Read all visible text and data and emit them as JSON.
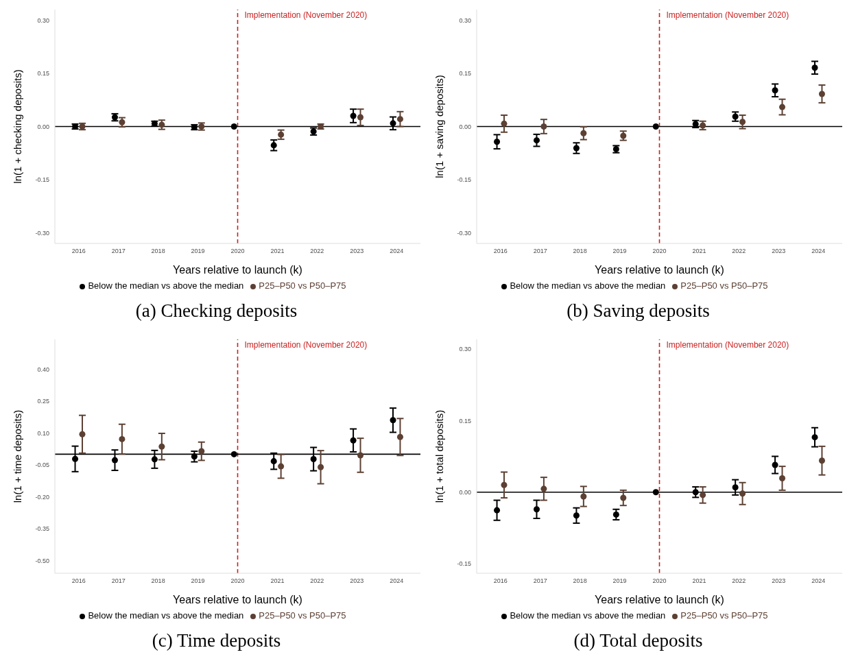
{
  "chart_data": [
    {
      "type": "scatter",
      "title": "(a) Checking deposits",
      "xlabel": "Years relative to launch (k)",
      "ylabel": "ln(1 + checking deposits)",
      "categories": [
        "2016",
        "2017",
        "2018",
        "2019",
        "2020",
        "2021",
        "2022",
        "2023",
        "2024"
      ],
      "series": [
        {
          "name": "Below the median vs above the median",
          "color": "#000000",
          "values": [
            0.0,
            0.026,
            0.008,
            -0.002,
            0.0,
            -0.053,
            -0.014,
            0.03,
            0.009
          ],
          "errors": [
            0.007,
            0.01,
            0.007,
            0.007,
            null,
            0.015,
            0.01,
            0.019,
            0.018
          ]
        },
        {
          "name": "P25–P50 vs P50–P75",
          "color": "#5c4033",
          "values": [
            0.0,
            0.012,
            0.005,
            0.0,
            null,
            -0.023,
            0.0,
            0.026,
            0.021
          ],
          "errors": [
            0.009,
            0.013,
            0.013,
            0.01,
            null,
            0.013,
            0.007,
            0.023,
            0.021
          ]
        }
      ],
      "ylim": [
        -0.33,
        0.33
      ],
      "yticks": [
        {
          "value": -0.3,
          "label": "-0.30"
        },
        {
          "value": -0.15,
          "label": "-0.15"
        },
        {
          "value": 0,
          "label": "0.00"
        },
        {
          "value": 0.15,
          "label": "0.15"
        },
        {
          "value": 0.3,
          "label": "0.30"
        }
      ],
      "ref_lines": [
        {
          "axis": "x",
          "value": "2020",
          "label": "Implementation (November 2020)",
          "color": "#cc1f1f",
          "line_style": "dashed"
        },
        {
          "axis": "y",
          "value": 0,
          "color": "#000000",
          "line_style": "solid"
        }
      ],
      "legend": "bottom",
      "marker": "circle",
      "grid": false
    },
    {
      "type": "scatter",
      "title": "(b) Saving deposits",
      "xlabel": "Years relative to launch (k)",
      "ylabel": "ln(1 + saving deposits)",
      "categories": [
        "2016",
        "2017",
        "2018",
        "2019",
        "2020",
        "2021",
        "2022",
        "2023",
        "2024"
      ],
      "series": [
        {
          "name": "Below the median vs above the median",
          "color": "#000000",
          "values": [
            -0.043,
            -0.039,
            -0.061,
            -0.064,
            0.0,
            0.007,
            0.028,
            0.102,
            0.166
          ],
          "errors": [
            0.02,
            0.017,
            0.015,
            0.01,
            null,
            0.01,
            0.013,
            0.018,
            0.018
          ]
        },
        {
          "name": "P25–P50 vs P50–P75",
          "color": "#5c4033",
          "values": [
            0.008,
            0.0,
            -0.019,
            -0.026,
            null,
            0.003,
            0.013,
            0.055,
            0.092
          ],
          "errors": [
            0.024,
            0.02,
            0.018,
            0.013,
            null,
            0.012,
            0.019,
            0.022,
            0.025
          ]
        }
      ],
      "ylim": [
        -0.33,
        0.33
      ],
      "yticks": [
        {
          "value": -0.3,
          "label": "-0.30"
        },
        {
          "value": -0.15,
          "label": "-0.15"
        },
        {
          "value": 0,
          "label": "0.00"
        },
        {
          "value": 0.15,
          "label": "0.15"
        },
        {
          "value": 0.3,
          "label": "0.30"
        }
      ],
      "ref_lines": [
        {
          "axis": "x",
          "value": "2020",
          "label": "Implementation (November 2020)",
          "color": "#cc1f1f",
          "line_style": "dashed"
        },
        {
          "axis": "y",
          "value": 0,
          "color": "#000000",
          "line_style": "solid"
        }
      ],
      "legend": "bottom",
      "marker": "circle",
      "grid": false
    },
    {
      "type": "scatter",
      "title": "(c) Time deposits",
      "xlabel": "Years relative to launch (k)",
      "ylabel": "ln(1 + time deposits)",
      "categories": [
        "2016",
        "2017",
        "2018",
        "2019",
        "2020",
        "2021",
        "2022",
        "2023",
        "2024"
      ],
      "series": [
        {
          "name": "Below the median vs above the median",
          "color": "#000000",
          "values": [
            -0.022,
            -0.028,
            -0.024,
            -0.011,
            0.0,
            -0.033,
            -0.023,
            0.065,
            0.16
          ],
          "errors": [
            0.06,
            0.048,
            0.042,
            0.025,
            null,
            0.038,
            0.055,
            0.054,
            0.057
          ]
        },
        {
          "name": "P25–P50 vs P50–P75",
          "color": "#5c4033",
          "values": [
            0.094,
            0.071,
            0.036,
            0.014,
            null,
            -0.057,
            -0.061,
            -0.005,
            0.081
          ],
          "errors": [
            0.089,
            0.07,
            0.062,
            0.043,
            null,
            0.056,
            0.078,
            0.08,
            0.087
          ]
        }
      ],
      "ylim": [
        -0.56,
        0.54
      ],
      "yticks": [
        {
          "value": -0.5,
          "label": "-0.50"
        },
        {
          "value": -0.35,
          "label": "-0.35"
        },
        {
          "value": -0.2,
          "label": "-0.20"
        },
        {
          "value": -0.05,
          "label": "-0.05"
        },
        {
          "value": 0.1,
          "label": "0.10"
        },
        {
          "value": 0.25,
          "label": "0.25"
        },
        {
          "value": 0.4,
          "label": "0.40"
        }
      ],
      "ref_lines": [
        {
          "axis": "x",
          "value": "2020",
          "label": "Implementation (November 2020)",
          "color": "#cc1f1f",
          "line_style": "dashed"
        },
        {
          "axis": "y",
          "value": 0,
          "color": "#000000",
          "line_style": "solid"
        }
      ],
      "legend": "bottom",
      "marker": "circle",
      "grid": false
    },
    {
      "type": "scatter",
      "title": "(d) Total deposits",
      "xlabel": "Years relative to launch (k)",
      "ylabel": "ln(1 + total deposits)",
      "categories": [
        "2016",
        "2017",
        "2018",
        "2019",
        "2020",
        "2021",
        "2022",
        "2023",
        "2024"
      ],
      "series": [
        {
          "name": "Below the median vs above the median",
          "color": "#000000",
          "values": [
            -0.038,
            -0.036,
            -0.049,
            -0.047,
            0.0,
            0.0,
            0.01,
            0.057,
            0.115
          ],
          "errors": [
            0.021,
            0.019,
            0.016,
            0.011,
            null,
            0.011,
            0.016,
            0.018,
            0.02
          ]
        },
        {
          "name": "P25–P50 vs P50–P75",
          "color": "#5c4033",
          "values": [
            0.015,
            0.007,
            -0.009,
            -0.012,
            null,
            -0.006,
            -0.003,
            0.029,
            0.066
          ],
          "errors": [
            0.027,
            0.024,
            0.021,
            0.016,
            null,
            0.017,
            0.023,
            0.025,
            0.03
          ]
        }
      ],
      "ylim": [
        -0.17,
        0.32
      ],
      "yticks": [
        {
          "value": -0.15,
          "label": "-0.15"
        },
        {
          "value": 0,
          "label": "0.00"
        },
        {
          "value": 0.15,
          "label": "0.15"
        },
        {
          "value": 0.3,
          "label": "0.30"
        }
      ],
      "ref_lines": [
        {
          "axis": "x",
          "value": "2020",
          "label": "Implementation (November 2020)",
          "color": "#cc1f1f",
          "line_style": "dashed"
        },
        {
          "axis": "y",
          "value": 0,
          "color": "#000000",
          "line_style": "solid"
        }
      ],
      "legend": "bottom",
      "marker": "circle",
      "grid": false
    }
  ]
}
